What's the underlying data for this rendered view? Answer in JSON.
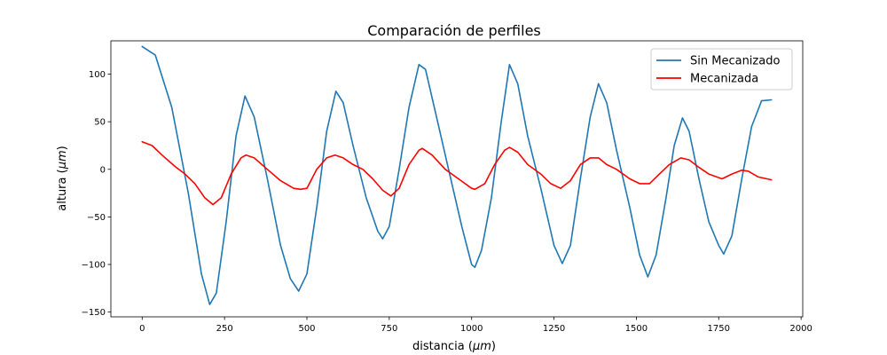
{
  "chart_data": {
    "type": "line",
    "title": "Comparación de perfiles",
    "xlabel": "distancia",
    "xlabel_unit": "μm",
    "ylabel": "altura",
    "ylabel_unit": "μm",
    "xlim": [
      -95,
      2005
    ],
    "ylim": [
      -155,
      135
    ],
    "xticks": [
      0,
      250,
      500,
      750,
      1000,
      1250,
      1500,
      1750,
      2000
    ],
    "yticks": [
      -150,
      -100,
      -50,
      0,
      50,
      100
    ],
    "grid": false,
    "legend_position": "top-right",
    "series": [
      {
        "name": "Sin Mecanizado",
        "color": "#1f77b4",
        "points": [
          [
            0,
            129
          ],
          [
            40,
            120
          ],
          [
            90,
            65
          ],
          [
            140,
            -25
          ],
          [
            180,
            -110
          ],
          [
            205,
            -142
          ],
          [
            225,
            -130
          ],
          [
            255,
            -55
          ],
          [
            285,
            35
          ],
          [
            312,
            77
          ],
          [
            340,
            55
          ],
          [
            380,
            -10
          ],
          [
            420,
            -80
          ],
          [
            450,
            -115
          ],
          [
            475,
            -128
          ],
          [
            500,
            -110
          ],
          [
            530,
            -40
          ],
          [
            560,
            40
          ],
          [
            588,
            82
          ],
          [
            610,
            70
          ],
          [
            640,
            25
          ],
          [
            680,
            -30
          ],
          [
            715,
            -65
          ],
          [
            730,
            -73
          ],
          [
            750,
            -60
          ],
          [
            780,
            0
          ],
          [
            810,
            65
          ],
          [
            840,
            110
          ],
          [
            860,
            105
          ],
          [
            890,
            60
          ],
          [
            930,
            0
          ],
          [
            970,
            -60
          ],
          [
            1000,
            -100
          ],
          [
            1010,
            -103
          ],
          [
            1030,
            -85
          ],
          [
            1060,
            -30
          ],
          [
            1090,
            50
          ],
          [
            1115,
            110
          ],
          [
            1140,
            90
          ],
          [
            1170,
            35
          ],
          [
            1210,
            -20
          ],
          [
            1250,
            -80
          ],
          [
            1275,
            -99
          ],
          [
            1300,
            -80
          ],
          [
            1330,
            -10
          ],
          [
            1360,
            55
          ],
          [
            1385,
            90
          ],
          [
            1410,
            70
          ],
          [
            1440,
            20
          ],
          [
            1480,
            -40
          ],
          [
            1510,
            -90
          ],
          [
            1535,
            -113
          ],
          [
            1560,
            -90
          ],
          [
            1590,
            -30
          ],
          [
            1615,
            25
          ],
          [
            1640,
            54
          ],
          [
            1660,
            40
          ],
          [
            1690,
            -10
          ],
          [
            1720,
            -55
          ],
          [
            1750,
            -80
          ],
          [
            1765,
            -89
          ],
          [
            1790,
            -70
          ],
          [
            1820,
            -10
          ],
          [
            1850,
            45
          ],
          [
            1880,
            72
          ],
          [
            1910,
            73
          ]
        ]
      },
      {
        "name": "Mecanizada",
        "color": "#ff0000",
        "points": [
          [
            0,
            29
          ],
          [
            30,
            25
          ],
          [
            60,
            15
          ],
          [
            100,
            3
          ],
          [
            130,
            -5
          ],
          [
            160,
            -15
          ],
          [
            190,
            -30
          ],
          [
            215,
            -37
          ],
          [
            240,
            -30
          ],
          [
            270,
            -5
          ],
          [
            300,
            12
          ],
          [
            315,
            15
          ],
          [
            340,
            12
          ],
          [
            380,
            0
          ],
          [
            420,
            -12
          ],
          [
            460,
            -20
          ],
          [
            480,
            -21
          ],
          [
            500,
            -20
          ],
          [
            530,
            0
          ],
          [
            560,
            12
          ],
          [
            585,
            15
          ],
          [
            610,
            12
          ],
          [
            640,
            5
          ],
          [
            670,
            0
          ],
          [
            700,
            -10
          ],
          [
            730,
            -22
          ],
          [
            755,
            -28
          ],
          [
            780,
            -20
          ],
          [
            810,
            5
          ],
          [
            840,
            20
          ],
          [
            850,
            22
          ],
          [
            880,
            15
          ],
          [
            920,
            0
          ],
          [
            960,
            -10
          ],
          [
            1000,
            -20
          ],
          [
            1010,
            -21
          ],
          [
            1040,
            -15
          ],
          [
            1070,
            5
          ],
          [
            1100,
            20
          ],
          [
            1115,
            23
          ],
          [
            1140,
            18
          ],
          [
            1170,
            5
          ],
          [
            1210,
            -5
          ],
          [
            1240,
            -15
          ],
          [
            1270,
            -20
          ],
          [
            1300,
            -12
          ],
          [
            1330,
            5
          ],
          [
            1360,
            12
          ],
          [
            1385,
            12
          ],
          [
            1410,
            5
          ],
          [
            1440,
            0
          ],
          [
            1480,
            -10
          ],
          [
            1510,
            -15
          ],
          [
            1540,
            -15
          ],
          [
            1570,
            -5
          ],
          [
            1600,
            5
          ],
          [
            1635,
            12
          ],
          [
            1660,
            10
          ],
          [
            1690,
            2
          ],
          [
            1720,
            -5
          ],
          [
            1760,
            -10
          ],
          [
            1790,
            -5
          ],
          [
            1820,
            -1
          ],
          [
            1840,
            -2
          ],
          [
            1870,
            -8
          ],
          [
            1910,
            -11
          ]
        ]
      }
    ]
  }
}
